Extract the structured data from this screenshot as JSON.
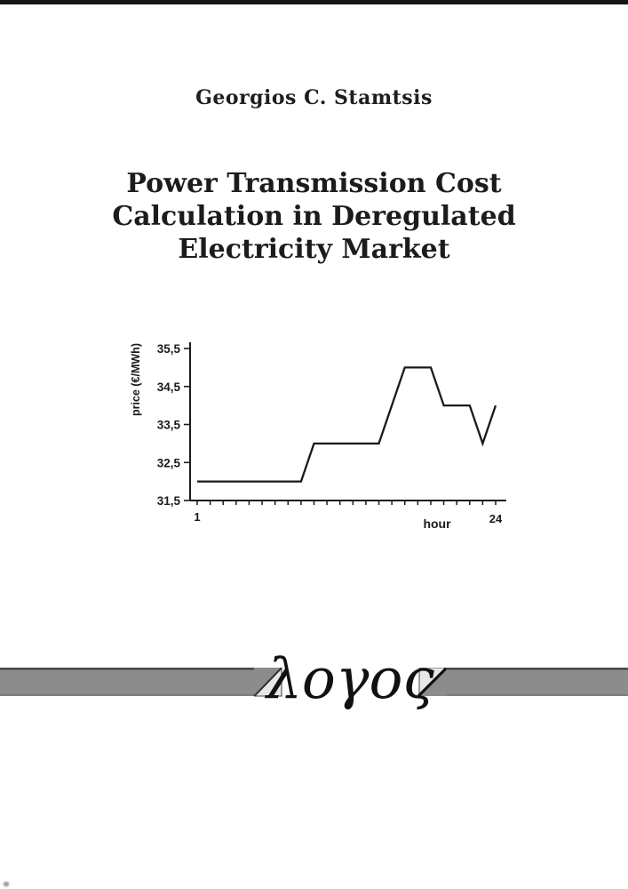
{
  "page": {
    "bg": "#ffffff"
  },
  "top_bar": {
    "color": "#161616"
  },
  "author": "Georgios C. Stamtsis",
  "title": {
    "lines": [
      "Power Transmission Cost",
      "Calculation in Deregulated",
      "Electricity Market"
    ]
  },
  "chart_data": {
    "type": "line",
    "title": "",
    "xlabel": "hour",
    "ylabel": "price (€/MWh)",
    "x": [
      1,
      2,
      3,
      4,
      5,
      6,
      7,
      8,
      9,
      10,
      11,
      12,
      13,
      14,
      15,
      16,
      17,
      18,
      19,
      20,
      21,
      22,
      23,
      24
    ],
    "values": [
      32,
      32,
      32,
      32,
      32,
      32,
      32,
      32,
      32,
      33,
      33,
      33,
      33,
      33,
      33,
      34,
      35,
      35,
      35,
      34,
      34,
      34,
      33,
      34
    ],
    "ylim": [
      31.5,
      35.5
    ],
    "xlim": [
      1,
      24
    ],
    "yticks": [
      31.5,
      32.5,
      33.5,
      34.5,
      35.5
    ],
    "ytick_labels": [
      "31,5",
      "32,5",
      "33,5",
      "34,5",
      "35,5"
    ],
    "xtick_hours": [
      1,
      2,
      3,
      4,
      5,
      6,
      7,
      8,
      9,
      10,
      11,
      12,
      13,
      14,
      15,
      16,
      17,
      18,
      19,
      20,
      21,
      22,
      23,
      24
    ],
    "xtick_labels_shown": [
      {
        "hour": 1,
        "label": "1"
      },
      {
        "hour": 24,
        "label": "24"
      }
    ],
    "grid": false,
    "legend": "none",
    "line_color": "#1a1a1a",
    "axis_color": "#1a1a1a",
    "label_color": "#1a1a1a"
  },
  "publisher": {
    "logo_text": "λογος",
    "bar_color": "#8c8c8c",
    "bar_top_edge": "#474747",
    "bar_bottom_edge": "#636363",
    "light_triangle": "#e7e7e7",
    "triangle_outline": "#4a4a4a",
    "left_diagonal_color": "#2c2c2c",
    "right_diagonal_color": "#111111"
  },
  "artifacts": {
    "bottom_left_mark_color": "#8a8a8a"
  }
}
